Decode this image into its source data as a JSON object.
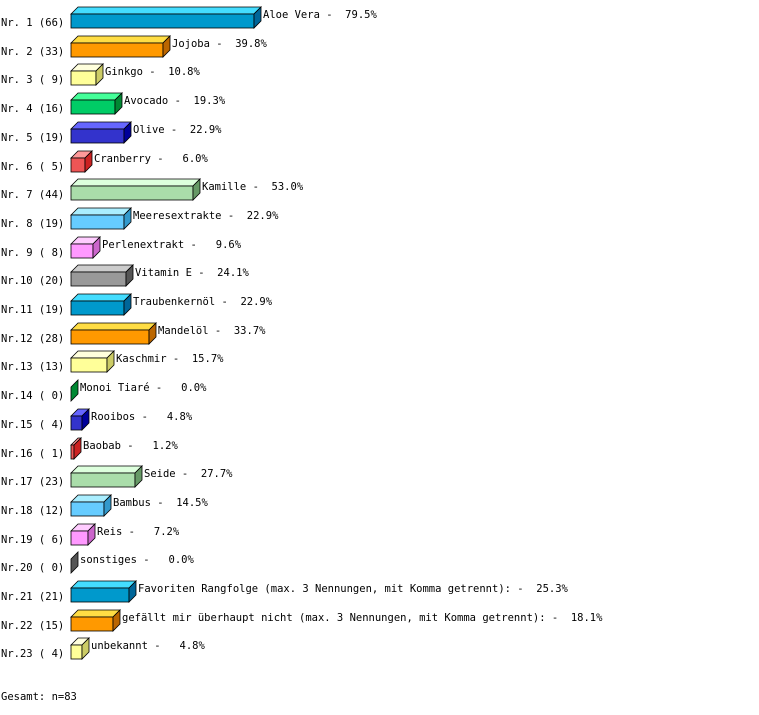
{
  "chart_data": {
    "type": "bar",
    "orientation": "horizontal",
    "style": "3d",
    "xlim": [
      0,
      100
    ],
    "grid": false,
    "rows": [
      {
        "rank": "Nr. 1",
        "count": "(66)",
        "label": "Aloe Vera",
        "value": 79.5
      },
      {
        "rank": "Nr. 2",
        "count": "(33)",
        "label": "Jojoba",
        "value": 39.8
      },
      {
        "rank": "Nr. 3",
        "count": "( 9)",
        "label": "Ginkgo",
        "value": 10.8
      },
      {
        "rank": "Nr. 4",
        "count": "(16)",
        "label": "Avocado",
        "value": 19.3
      },
      {
        "rank": "Nr. 5",
        "count": "(19)",
        "label": "Olive",
        "value": 22.9
      },
      {
        "rank": "Nr. 6",
        "count": "( 5)",
        "label": "Cranberry",
        "value": 6.0
      },
      {
        "rank": "Nr. 7",
        "count": "(44)",
        "label": "Kamille",
        "value": 53.0
      },
      {
        "rank": "Nr. 8",
        "count": "(19)",
        "label": "Meeresextrakte",
        "value": 22.9
      },
      {
        "rank": "Nr. 9",
        "count": "( 8)",
        "label": "Perlenextrakt",
        "value": 9.6
      },
      {
        "rank": "Nr.10",
        "count": "(20)",
        "label": "Vitamin E",
        "value": 24.1
      },
      {
        "rank": "Nr.11",
        "count": "(19)",
        "label": "Traubenkernöl",
        "value": 22.9
      },
      {
        "rank": "Nr.12",
        "count": "(28)",
        "label": "Mandelöl",
        "value": 33.7
      },
      {
        "rank": "Nr.13",
        "count": "(13)",
        "label": "Kaschmir",
        "value": 15.7
      },
      {
        "rank": "Nr.14",
        "count": "( 0)",
        "label": "Monoi Tiaré",
        "value": 0.0
      },
      {
        "rank": "Nr.15",
        "count": "( 4)",
        "label": "Rooibos",
        "value": 4.8
      },
      {
        "rank": "Nr.16",
        "count": "( 1)",
        "label": "Baobab",
        "value": 1.2
      },
      {
        "rank": "Nr.17",
        "count": "(23)",
        "label": "Seide",
        "value": 27.7
      },
      {
        "rank": "Nr.18",
        "count": "(12)",
        "label": "Bambus",
        "value": 14.5
      },
      {
        "rank": "Nr.19",
        "count": "( 6)",
        "label": "Reis",
        "value": 7.2
      },
      {
        "rank": "Nr.20",
        "count": "( 0)",
        "label": "sonstiges",
        "value": 0.0
      },
      {
        "rank": "Nr.21",
        "count": "(21)",
        "label": "Favoriten Rangfolge (max. 3 Nennungen, mit Komma getrennt):",
        "value": 25.3
      },
      {
        "rank": "Nr.22",
        "count": "(15)",
        "label": "gefällt mir überhaupt nicht (max. 3 Nennungen, mit Komma getrennt):",
        "value": 18.1
      },
      {
        "rank": "Nr.23",
        "count": "( 4)",
        "label": "unbekannt",
        "value": 4.8
      }
    ],
    "palette": [
      {
        "front": "#0099cc",
        "top": "#44ddff",
        "side": "#006699"
      },
      {
        "front": "#ff9900",
        "top": "#ffdd44",
        "side": "#bb6600"
      },
      {
        "front": "#ffff99",
        "top": "#ffffdd",
        "side": "#cccc66"
      },
      {
        "front": "#00cc66",
        "top": "#44ff99",
        "side": "#008833"
      },
      {
        "front": "#3333cc",
        "top": "#6666ff",
        "side": "#000099"
      },
      {
        "front": "#ee5555",
        "top": "#ff9999",
        "side": "#cc2222"
      },
      {
        "front": "#aaddaa",
        "top": "#ddffdd",
        "side": "#669966"
      },
      {
        "front": "#66ccff",
        "top": "#aaeeff",
        "side": "#3399cc"
      },
      {
        "front": "#ff99ff",
        "top": "#ffccff",
        "side": "#cc66cc"
      },
      {
        "front": "#999999",
        "top": "#cccccc",
        "side": "#555555"
      }
    ]
  },
  "footer": {
    "total": "Gesamt: n=83"
  }
}
